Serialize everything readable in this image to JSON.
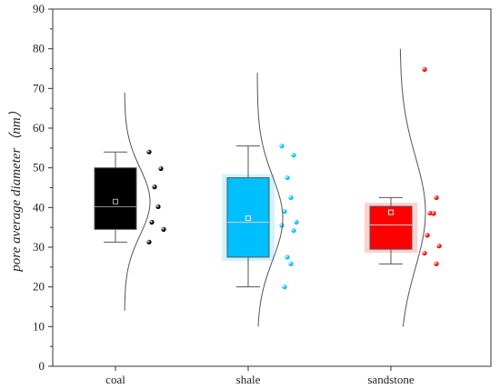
{
  "chart_data": {
    "type": "box",
    "title": "",
    "xlabel": "",
    "ylabel": "pore average diameter（nm）",
    "ylim": [
      0,
      90
    ],
    "yticks": [
      0,
      10,
      20,
      30,
      40,
      50,
      60,
      70,
      80,
      90
    ],
    "grid": false,
    "categories": [
      "coal",
      "shale",
      "sandstone"
    ],
    "colors": {
      "coal": "#000000",
      "shale": "#00bfff",
      "sandstone": "#ff0000"
    },
    "boxes": [
      {
        "category": "coal",
        "whisker_low": 31.3,
        "q1": 34.5,
        "median": 40.2,
        "q3": 50.0,
        "whisker_high": 54.0,
        "mean": 41.5
      },
      {
        "category": "shale",
        "whisker_low": 20.0,
        "q1": 27.5,
        "median": 36.3,
        "q3": 47.5,
        "whisker_high": 55.5,
        "mean": 37.3
      },
      {
        "category": "sandstone",
        "whisker_low": 25.8,
        "q1": 29.5,
        "median": 35.6,
        "q3": 40.3,
        "whisker_high": 42.5,
        "mean": 38.8
      }
    ],
    "points": [
      {
        "category": "coal",
        "values": [
          54.0,
          49.8,
          45.2,
          40.2,
          36.3,
          34.5,
          31.3
        ]
      },
      {
        "category": "shale",
        "values": [
          55.5,
          53.2,
          47.5,
          42.5,
          39.0,
          36.3,
          35.5,
          34.2,
          27.5,
          25.8,
          20.0
        ]
      },
      {
        "category": "sandstone",
        "values": [
          74.8,
          42.5,
          38.6,
          38.5,
          33.0,
          30.3,
          28.5,
          25.8
        ]
      }
    ],
    "density_curves": [
      {
        "category": "coal",
        "range": [
          14.0,
          69.0
        ],
        "mean": 41.5,
        "sd": 8.5
      },
      {
        "category": "shale",
        "range": [
          10.0,
          74.0
        ],
        "mean": 37.3,
        "sd": 10.5
      },
      {
        "category": "sandstone",
        "range": [
          10.0,
          80.0
        ],
        "mean": 38.8,
        "sd": 14.0
      }
    ]
  }
}
